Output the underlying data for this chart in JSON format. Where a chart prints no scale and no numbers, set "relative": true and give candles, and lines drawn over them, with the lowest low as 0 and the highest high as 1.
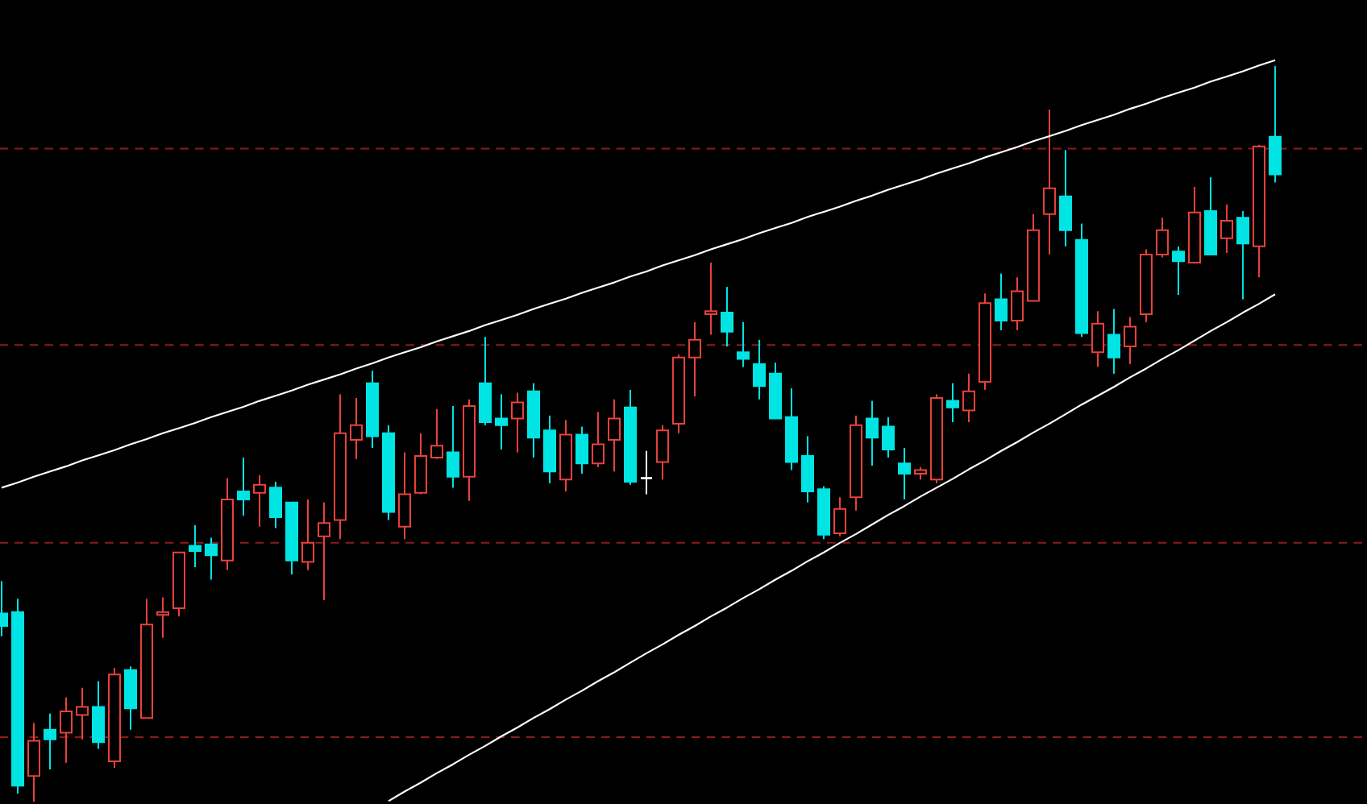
{
  "chart_data": {
    "type": "candlestick",
    "relative": true,
    "categories": [
      null,
      null,
      null,
      null,
      null,
      null,
      null,
      null,
      null,
      null,
      null,
      null,
      null,
      null,
      null,
      null,
      null,
      null,
      null,
      null,
      null,
      null,
      null,
      null,
      null,
      null,
      null,
      null,
      null,
      null,
      null,
      null,
      null,
      null,
      null,
      null,
      null,
      null,
      null,
      null,
      null,
      null,
      null,
      null,
      null,
      null,
      null,
      null,
      null,
      null,
      null,
      null,
      null,
      null,
      null,
      null,
      null,
      null,
      null,
      null,
      null,
      null,
      null,
      null,
      null,
      null,
      null,
      null,
      null,
      null,
      null,
      null,
      null,
      null,
      null,
      null,
      null,
      null,
      null,
      null
    ],
    "ohlc": [
      [
        0.256,
        0.3,
        0.225,
        0.239
      ],
      [
        0.258,
        0.276,
        0.011,
        0.022
      ],
      [
        0.035,
        0.107,
        0,
        0.083
      ],
      [
        0.098,
        0.12,
        0.044,
        0.085
      ],
      [
        0.094,
        0.142,
        0.053,
        0.123
      ],
      [
        0.118,
        0.155,
        0.085,
        0.129
      ],
      [
        0.129,
        0.164,
        0.072,
        0.081
      ],
      [
        0.055,
        0.182,
        0.046,
        0.173
      ],
      [
        0.179,
        0.184,
        0.098,
        0.127
      ],
      [
        0.114,
        0.276,
        0.114,
        0.241
      ],
      [
        0.254,
        0.278,
        0.223,
        0.258
      ],
      [
        0.263,
        0.339,
        0.252,
        0.339
      ],
      [
        0.348,
        0.376,
        0.319,
        0.341
      ],
      [
        0.35,
        0.359,
        0.302,
        0.335
      ],
      [
        0.328,
        0.44,
        0.315,
        0.411
      ],
      [
        0.422,
        0.468,
        0.389,
        0.411
      ],
      [
        0.42,
        0.444,
        0.374,
        0.431
      ],
      [
        0.427,
        0.435,
        0.372,
        0.387
      ],
      [
        0.407,
        0.407,
        0.309,
        0.328
      ],
      [
        0.326,
        0.411,
        0.315,
        0.352
      ],
      [
        0.361,
        0.407,
        0.274,
        0.379
      ],
      [
        0.383,
        0.554,
        0.357,
        0.501
      ],
      [
        0.492,
        0.549,
        0.466,
        0.512
      ],
      [
        0.569,
        0.586,
        0.481,
        0.497
      ],
      [
        0.501,
        0.512,
        0.383,
        0.394
      ],
      [
        0.374,
        0.475,
        0.357,
        0.418
      ],
      [
        0.42,
        0.501,
        0.418,
        0.47
      ],
      [
        0.468,
        0.534,
        0.466,
        0.484
      ],
      [
        0.475,
        0.538,
        0.427,
        0.442
      ],
      [
        0.442,
        0.547,
        0.409,
        0.538
      ],
      [
        0.569,
        0.632,
        0.512,
        0.516
      ],
      [
        0.521,
        0.554,
        0.479,
        0.512
      ],
      [
        0.521,
        0.556,
        0.475,
        0.543
      ],
      [
        0.558,
        0.569,
        0.468,
        0.495
      ],
      [
        0.505,
        0.525,
        0.433,
        0.449
      ],
      [
        0.438,
        0.519,
        0.422,
        0.499
      ],
      [
        0.499,
        0.51,
        0.446,
        0.46
      ],
      [
        0.46,
        0.53,
        0.455,
        0.486
      ],
      [
        0.492,
        0.547,
        0.449,
        0.521
      ],
      [
        0.536,
        0.56,
        0.431,
        0.435
      ],
      [
        0.44,
        0.477,
        0.418,
        0.44
      ],
      [
        0.462,
        0.512,
        0.438,
        0.505
      ],
      [
        0.514,
        0.608,
        0.501,
        0.604
      ],
      [
        0.604,
        0.652,
        0.551,
        0.628
      ],
      [
        0.663,
        0.733,
        0.635,
        0.667
      ],
      [
        0.665,
        0.7,
        0.619,
        0.639
      ],
      [
        0.611,
        0.652,
        0.591,
        0.602
      ],
      [
        0.595,
        0.628,
        0.547,
        0.565
      ],
      [
        0.582,
        0.597,
        0.521,
        0.521
      ],
      [
        0.523,
        0.562,
        0.451,
        0.462
      ],
      [
        0.47,
        0.497,
        0.407,
        0.422
      ],
      [
        0.425,
        0.429,
        0.357,
        0.363
      ],
      [
        0.365,
        0.414,
        0.361,
        0.398
      ],
      [
        0.414,
        0.525,
        0.396,
        0.512
      ],
      [
        0.521,
        0.545,
        0.457,
        0.495
      ],
      [
        0.51,
        0.523,
        0.468,
        0.479
      ],
      [
        0.46,
        0.481,
        0.411,
        0.446
      ],
      [
        0.446,
        0.455,
        0.438,
        0.451
      ],
      [
        0.438,
        0.554,
        0.433,
        0.549
      ],
      [
        0.545,
        0.569,
        0.516,
        0.536
      ],
      [
        0.532,
        0.582,
        0.516,
        0.558
      ],
      [
        0.571,
        0.691,
        0.56,
        0.678
      ],
      [
        0.683,
        0.718,
        0.641,
        0.654
      ],
      [
        0.654,
        0.713,
        0.641,
        0.694
      ],
      [
        0.681,
        0.799,
        0.681,
        0.777
      ],
      [
        0.799,
        0.941,
        0.744,
        0.834
      ],
      [
        0.823,
        0.886,
        0.755,
        0.777
      ],
      [
        0.764,
        0.786,
        0.632,
        0.637
      ],
      [
        0.611,
        0.667,
        0.591,
        0.65
      ],
      [
        0.635,
        0.67,
        0.582,
        0.604
      ],
      [
        0.619,
        0.659,
        0.595,
        0.646
      ],
      [
        0.663,
        0.751,
        0.652,
        0.744
      ],
      [
        0.744,
        0.794,
        0.74,
        0.777
      ],
      [
        0.748,
        0.755,
        0.689,
        0.735
      ],
      [
        0.733,
        0.836,
        0.733,
        0.801
      ],
      [
        0.803,
        0.849,
        0.744,
        0.744
      ],
      [
        0.766,
        0.812,
        0.746,
        0.79
      ],
      [
        0.794,
        0.803,
        0.683,
        0.759
      ],
      [
        0.755,
        0.893,
        0.713,
        0.891
      ],
      [
        0.904,
        1.0,
        0.842,
        0.853
      ]
    ],
    "colors": [
      "#00e4e4",
      "#00e4e4",
      "#e8423c",
      "#00e4e4",
      "#e8423c",
      "#e8423c",
      "#00e4e4",
      "#e8423c",
      "#00e4e4",
      "#e8423c",
      "#e8423c",
      "#e8423c",
      "#00e4e4",
      "#00e4e4",
      "#e8423c",
      "#00e4e4",
      "#e8423c",
      "#00e4e4",
      "#00e4e4",
      "#e8423c",
      "#e8423c",
      "#e8423c",
      "#e8423c",
      "#00e4e4",
      "#00e4e4",
      "#e8423c",
      "#e8423c",
      "#e8423c",
      "#00e4e4",
      "#e8423c",
      "#00e4e4",
      "#00e4e4",
      "#e8423c",
      "#00e4e4",
      "#00e4e4",
      "#e8423c",
      "#00e4e4",
      "#e8423c",
      "#e8423c",
      "#00e4e4",
      "#ffffff",
      "#e8423c",
      "#e8423c",
      "#e8423c",
      "#e8423c",
      "#00e4e4",
      "#00e4e4",
      "#00e4e4",
      "#00e4e4",
      "#00e4e4",
      "#00e4e4",
      "#00e4e4",
      "#e8423c",
      "#e8423c",
      "#00e4e4",
      "#00e4e4",
      "#00e4e4",
      "#e8423c",
      "#e8423c",
      "#00e4e4",
      "#e8423c",
      "#e8423c",
      "#00e4e4",
      "#e8423c",
      "#e8423c",
      "#e8423c",
      "#00e4e4",
      "#00e4e4",
      "#e8423c",
      "#00e4e4",
      "#e8423c",
      "#e8423c",
      "#e8423c",
      "#00e4e4",
      "#e8423c",
      "#00e4e4",
      "#e8423c",
      "#00e4e4",
      "#e8423c",
      "#00e4e4"
    ],
    "series": [
      {
        "type": "line",
        "color": "#ffffff",
        "values": [
          0.427,
          0.434,
          0.442,
          0.449,
          0.456,
          0.464,
          0.471,
          0.478,
          0.486,
          0.493,
          0.501,
          0.508,
          0.515,
          0.523,
          0.53,
          0.537,
          0.545,
          0.552,
          0.559,
          0.567,
          0.574,
          0.581,
          0.589,
          0.596,
          0.604,
          0.611,
          0.618,
          0.626,
          0.633,
          0.64,
          0.648,
          0.655,
          0.662,
          0.67,
          0.677,
          0.684,
          0.692,
          0.699,
          0.706,
          0.714,
          0.721,
          0.729,
          0.736,
          0.743,
          0.751,
          0.758,
          0.765,
          0.773,
          0.78,
          0.787,
          0.795,
          0.802,
          0.809,
          0.817,
          0.824,
          0.832,
          0.839,
          0.846,
          0.854,
          0.861,
          0.868,
          0.876,
          0.883,
          0.89,
          0.898,
          0.905,
          0.912,
          0.92,
          0.927,
          0.934,
          0.942,
          0.949,
          0.957,
          0.964,
          0.971,
          0.979,
          0.986,
          0.993,
          1.001,
          1.008
        ]
      },
      {
        "type": "line",
        "color": "#ffffff",
        "values": [
          null,
          null,
          null,
          null,
          null,
          null,
          null,
          null,
          null,
          null,
          null,
          null,
          null,
          null,
          null,
          null,
          null,
          null,
          null,
          null,
          null,
          null,
          null,
          null,
          0.001,
          0.014,
          0.026,
          0.039,
          0.051,
          0.064,
          0.076,
          0.089,
          0.101,
          0.114,
          0.126,
          0.139,
          0.151,
          0.164,
          0.176,
          0.189,
          0.202,
          0.214,
          0.227,
          0.239,
          0.252,
          0.264,
          0.277,
          0.289,
          0.302,
          0.314,
          0.327,
          0.339,
          0.352,
          0.364,
          0.377,
          0.39,
          0.402,
          0.415,
          0.427,
          0.439,
          0.452,
          0.464,
          0.477,
          0.489,
          0.502,
          0.514,
          0.527,
          0.54,
          0.552,
          0.564,
          0.577,
          0.589,
          0.602,
          0.614,
          0.627,
          0.64,
          0.652,
          0.665,
          0.677,
          0.69
        ]
      }
    ],
    "ref_lines": [
      {
        "axis": "y",
        "value": 0.888,
        "color": "#8b1c1c",
        "line_style": "dashed"
      },
      {
        "axis": "y",
        "value": 0.621,
        "color": "#8b1c1c",
        "line_style": "dashed"
      },
      {
        "axis": "y",
        "value": 0.352,
        "color": "#8b1c1c",
        "line_style": "dashed"
      },
      {
        "axis": "y",
        "value": 0.088,
        "color": "#8b1c1c",
        "line_style": "dashed"
      }
    ]
  }
}
